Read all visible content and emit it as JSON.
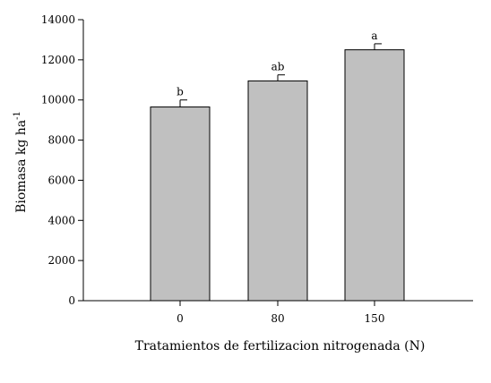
{
  "chart_data": {
    "type": "bar",
    "categories": [
      "0",
      "80",
      "150"
    ],
    "values": [
      9650,
      10950,
      12500
    ],
    "error_bars": [
      350,
      300,
      300
    ],
    "significance_labels": [
      "b",
      "ab",
      "a"
    ],
    "title": "",
    "xlabel": "Tratamientos de fertilizacion nitrogenada (N)",
    "ylabel": "Biomasa kg ha",
    "ylabel_superscript": "-1",
    "ylim": [
      0,
      14000
    ],
    "yticks": [
      0,
      2000,
      4000,
      6000,
      8000,
      10000,
      12000,
      14000
    ],
    "bar_color": "#c0c0c0",
    "bar_edge_color": "#000000",
    "grid": false,
    "legend": "none"
  }
}
